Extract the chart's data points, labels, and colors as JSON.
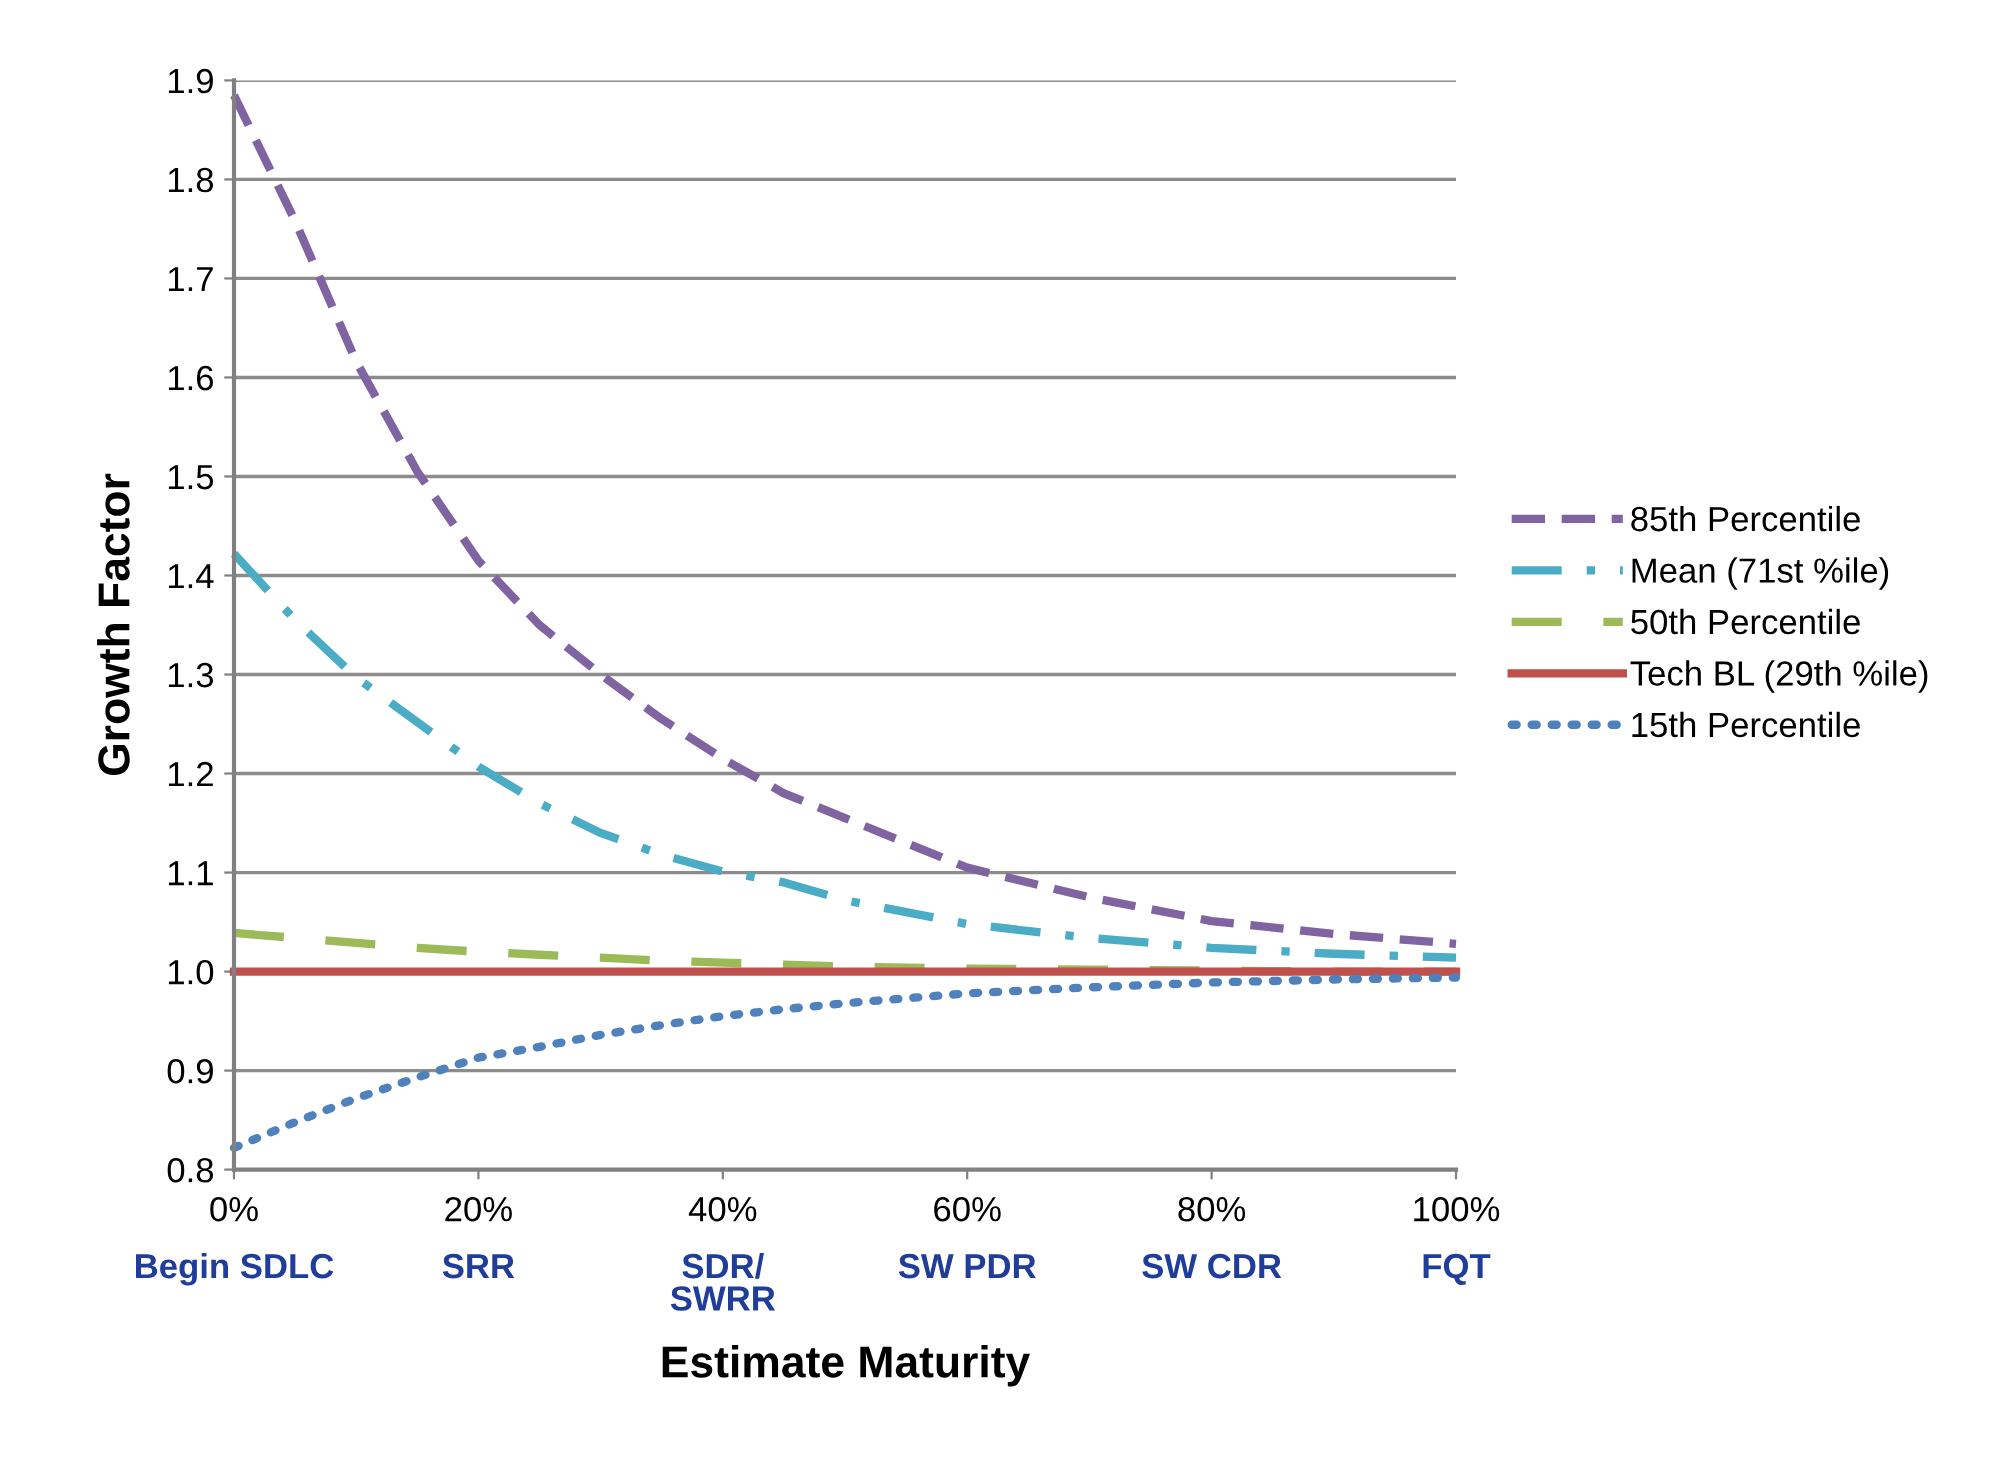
{
  "chart_data": {
    "type": "line",
    "xlabel": "Estimate Maturity",
    "ylabel": "Growth Factor",
    "x": [
      0,
      5,
      10,
      15,
      20,
      25,
      30,
      35,
      40,
      45,
      50,
      60,
      70,
      80,
      90,
      100
    ],
    "xlim": [
      0,
      100
    ],
    "xticks": [
      {
        "value": 0,
        "label": "0%"
      },
      {
        "value": 20,
        "label": "20%"
      },
      {
        "value": 40,
        "label": "40%"
      },
      {
        "value": 60,
        "label": "60%"
      },
      {
        "value": 80,
        "label": "80%"
      },
      {
        "value": 100,
        "label": "100%"
      }
    ],
    "ylim": [
      0.8,
      1.9
    ],
    "yticks": [
      {
        "value": 0.8,
        "label": "0.8"
      },
      {
        "value": 0.9,
        "label": "0.9"
      },
      {
        "value": 1.0,
        "label": "1.0"
      },
      {
        "value": 1.1,
        "label": "1.1"
      },
      {
        "value": 1.2,
        "label": "1.2"
      },
      {
        "value": 1.3,
        "label": "1.3"
      },
      {
        "value": 1.4,
        "label": "1.4"
      },
      {
        "value": 1.5,
        "label": "1.5"
      },
      {
        "value": 1.6,
        "label": "1.6"
      },
      {
        "value": 1.7,
        "label": "1.7"
      },
      {
        "value": 1.8,
        "label": "1.8"
      },
      {
        "value": 1.9,
        "label": "1.9"
      }
    ],
    "grid": "y",
    "legend": "right",
    "marker": "none",
    "series": [
      {
        "name": "85th Percentile",
        "color": "#8064a2",
        "line_style": "dashed",
        "values": [
          1.885,
          1.758,
          1.616,
          1.505,
          1.415,
          1.35,
          1.3,
          1.255,
          1.215,
          1.18,
          1.155,
          1.105,
          1.075,
          1.051,
          1.038,
          1.028
        ]
      },
      {
        "name": "Mean (71st %ile)",
        "color": "#4bacc6",
        "line_style": "dashdot",
        "values": [
          1.422,
          1.355,
          1.297,
          1.252,
          1.207,
          1.17,
          1.14,
          1.118,
          1.101,
          1.09,
          1.072,
          1.048,
          1.034,
          1.024,
          1.018,
          1.014
        ]
      },
      {
        "name": "50th Percentile",
        "color": "#9bbb59",
        "line_style": "longdash",
        "values": [
          1.039,
          1.034,
          1.029,
          1.024,
          1.02,
          1.017,
          1.014,
          1.011,
          1.009,
          1.007,
          1.005,
          1.003,
          1.002,
          1.001,
          1.0,
          1.0
        ]
      },
      {
        "name": "Tech BL (29th %ile)",
        "color": "#c0504d",
        "line_style": "solid",
        "values": [
          1.0,
          1.0,
          1.0,
          1.0,
          1.0,
          1.0,
          1.0,
          1.0,
          1.0,
          1.0,
          1.0,
          1.0,
          1.0,
          1.0,
          1.0,
          1.0
        ]
      },
      {
        "name": "15th Percentile",
        "color": "#4f81bd",
        "line_style": "dotted",
        "values": [
          0.822,
          0.848,
          0.872,
          0.893,
          0.913,
          0.924,
          0.936,
          0.946,
          0.955,
          0.962,
          0.968,
          0.978,
          0.984,
          0.989,
          0.992,
          0.994
        ]
      }
    ],
    "annotations": [
      "Begin SDLC",
      "SRR",
      "SDR/\nSWRR",
      "SW PDR",
      "SW CDR",
      "FQT"
    ]
  }
}
